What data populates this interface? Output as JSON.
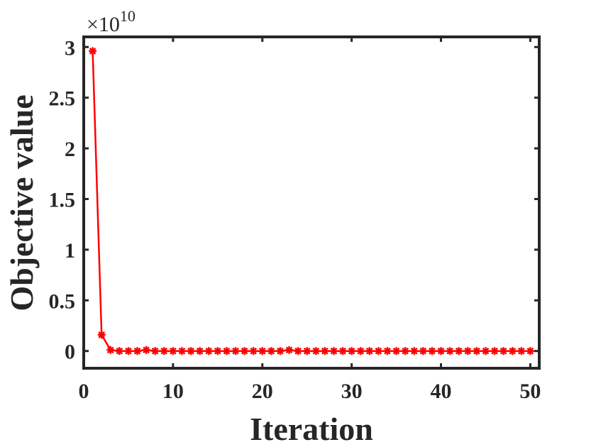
{
  "chart_data": {
    "type": "line",
    "title": "",
    "xlabel": "Iteration",
    "ylabel": "Objective value",
    "y_multiplier": {
      "base": "×10",
      "exponent": "10"
    },
    "xlim": [
      0,
      51
    ],
    "ylim": [
      -0.17,
      3.1
    ],
    "x_ticks": [
      0,
      10,
      20,
      30,
      40,
      50
    ],
    "x_tick_labels": [
      "0",
      "10",
      "20",
      "30",
      "40",
      "50"
    ],
    "y_ticks": [
      0,
      0.5,
      1,
      1.5,
      2,
      2.5,
      3
    ],
    "y_tick_labels": [
      "0",
      "0.5",
      "1",
      "1.5",
      "2",
      "2.5",
      "3"
    ],
    "grid": false,
    "series": [
      {
        "color": "#ff0000",
        "marker": "asterisk",
        "x": [
          1,
          2,
          3,
          4,
          5,
          6,
          7,
          8,
          9,
          10,
          11,
          12,
          13,
          14,
          15,
          16,
          17,
          18,
          19,
          20,
          21,
          22,
          23,
          24,
          25,
          26,
          27,
          28,
          29,
          30,
          31,
          32,
          33,
          34,
          35,
          36,
          37,
          38,
          39,
          40,
          41,
          42,
          43,
          44,
          45,
          46,
          47,
          48,
          49,
          50
        ],
        "values": [
          2.96,
          0.16,
          0.01,
          0.0,
          0.0,
          0.0,
          0.01,
          0.0,
          0.0,
          0.0,
          0.0,
          0.0,
          0.0,
          0.0,
          0.0,
          0.0,
          0.0,
          0.0,
          0.0,
          0.0,
          0.0,
          0.0,
          0.01,
          0.0,
          0.0,
          0.0,
          0.0,
          0.0,
          0.0,
          0.0,
          0.0,
          0.0,
          0.0,
          0.0,
          0.0,
          0.0,
          0.0,
          0.0,
          0.0,
          0.0,
          0.0,
          0.0,
          0.0,
          0.0,
          0.0,
          0.0,
          0.0,
          0.0,
          0.0,
          0.0
        ]
      }
    ]
  }
}
